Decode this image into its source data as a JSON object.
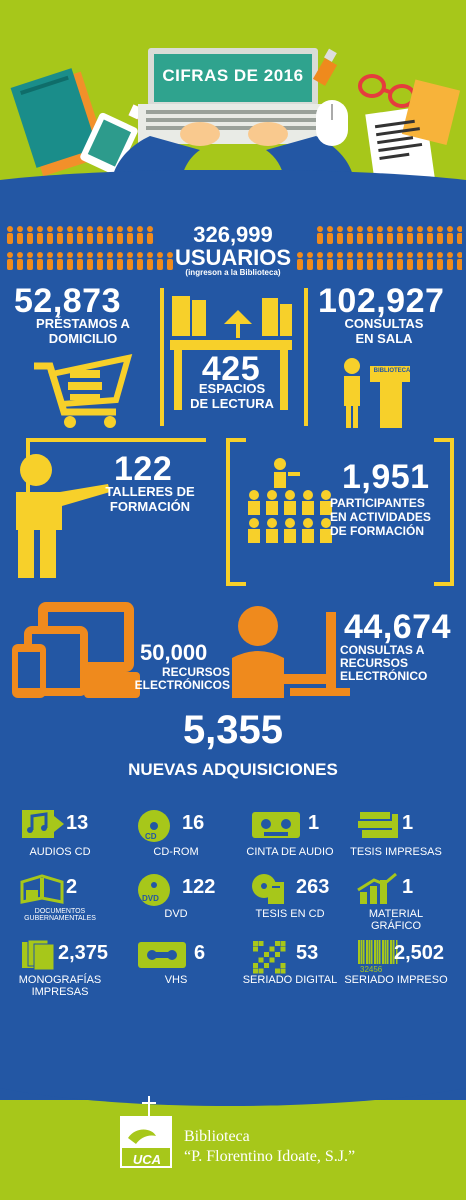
{
  "header": {
    "title": "CIFRAS DE 2016"
  },
  "usuarios": {
    "value": "326,999",
    "label": "USUARIOS",
    "note": "(ingreson a la Biblioteca)"
  },
  "prestamos": {
    "value": "52,873",
    "label_1": "PRÉSTAMOS A",
    "label_2": "DOMICILIO"
  },
  "espacios": {
    "value": "425",
    "label_1": "ESPACIOS",
    "label_2": "DE LECTURA"
  },
  "consultas_sala": {
    "value": "102,927",
    "label_1": "CONSULTAS",
    "label_2": "EN SALA",
    "sign": "BIBLIOTECA"
  },
  "talleres": {
    "value": "122",
    "label_1": "TALLERES DE",
    "label_2": "FORMACIÓN"
  },
  "participantes": {
    "value": "1,951",
    "label_1": "PARTICIPANTES",
    "label_2": "EN ACTIVIDADES",
    "label_3": "DE FORMACIÓN"
  },
  "recursos": {
    "value": "50,000",
    "label_1": "RECURSOS",
    "label_2": "ELECTRÓNICOS"
  },
  "consultas_recursos": {
    "value": "44,674",
    "label_1": "CONSULTAS A",
    "label_2": "RECURSOS",
    "label_3": "ELECTRÓNICO"
  },
  "adquisiciones": {
    "value": "5,355",
    "label": "NUEVAS ADQUISICIONES"
  },
  "items": [
    {
      "value": "13",
      "label": "AUDIOS CD",
      "icon": "music-note-icon"
    },
    {
      "value": "16",
      "label": "CD-ROM",
      "icon": "cd-rom-icon",
      "icon_text": "CD"
    },
    {
      "value": "1",
      "label": "CINTA DE AUDIO",
      "icon": "audio-tape-icon"
    },
    {
      "value": "1",
      "label": "TESIS IMPRESAS",
      "icon": "book-stack-icon"
    },
    {
      "value": "2",
      "label": "DOCUMENTOS GUBERNAMENTALES",
      "icon": "open-book-icon"
    },
    {
      "value": "122",
      "label": "DVD",
      "icon": "dvd-icon",
      "icon_text": "DVD"
    },
    {
      "value": "263",
      "label": "TESIS EN CD",
      "icon": "thesis-cd-icon"
    },
    {
      "value": "1",
      "label": "MATERIAL GRÁFICO",
      "icon": "bar-chart-icon"
    },
    {
      "value": "2,375",
      "label": "MONOGRAFÍAS IMPRESAS",
      "icon": "documents-icon"
    },
    {
      "value": "6",
      "label": "VHS",
      "icon": "vhs-icon"
    },
    {
      "value": "53",
      "label": "SERIADO DIGITAL",
      "icon": "qr-code-icon"
    },
    {
      "value": "2,502",
      "label": "SERIADO IMPRESO",
      "icon": "barcode-icon",
      "icon_text": "32456"
    }
  ],
  "footer": {
    "line_1": "Biblioteca",
    "line_2": "“P. Florentino Idoate, S.J.”",
    "logo_text": "UCA"
  },
  "colors": {
    "green": "#a7c71a",
    "blue": "#2357a4",
    "yellow": "#f7d02a",
    "orange": "#ef8a1d"
  }
}
